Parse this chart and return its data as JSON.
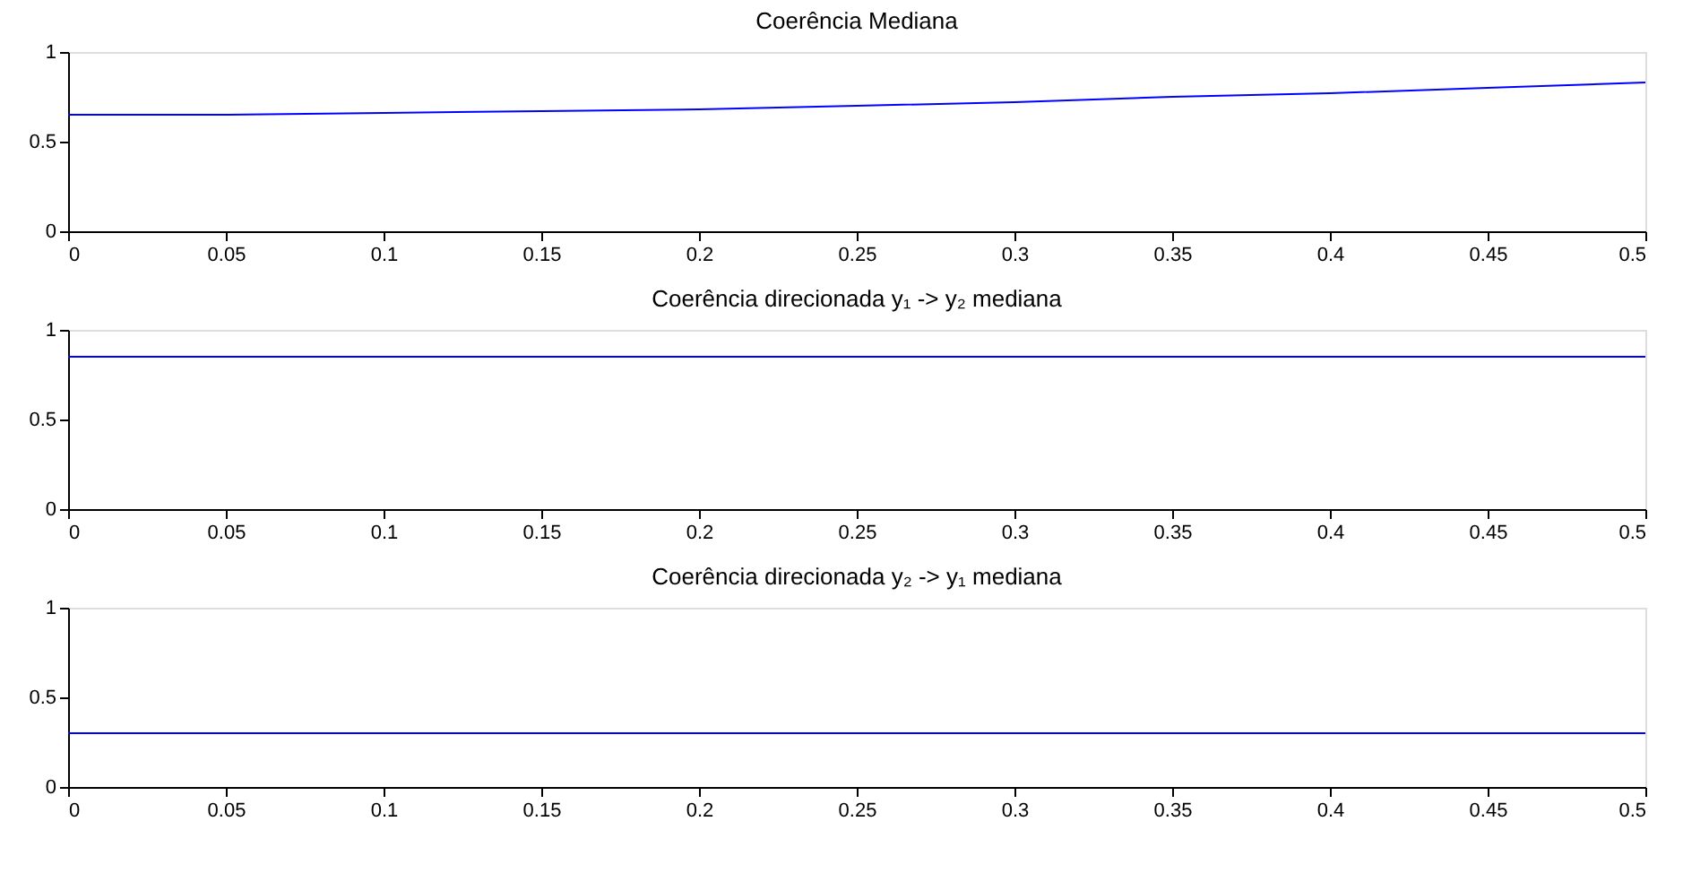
{
  "chart_data": [
    {
      "type": "line",
      "title": "Coerência Mediana",
      "x": [
        0,
        0.05,
        0.1,
        0.15,
        0.2,
        0.25,
        0.3,
        0.35,
        0.4,
        0.45,
        0.5
      ],
      "values": [
        0.65,
        0.65,
        0.66,
        0.67,
        0.68,
        0.7,
        0.72,
        0.75,
        0.77,
        0.8,
        0.83
      ],
      "color": "#0000ff",
      "xlim": [
        0,
        0.5
      ],
      "xticks": [
        0,
        0.05,
        0.1,
        0.15,
        0.2,
        0.25,
        0.3,
        0.35,
        0.4,
        0.45,
        0.5
      ],
      "ylim": [
        0,
        1
      ],
      "yticks": [
        0,
        0.5,
        1
      ]
    },
    {
      "type": "line",
      "title": "Coerência direcionada y₁ -> y₂ mediana",
      "x": [
        0,
        0.5
      ],
      "values": [
        0.85,
        0.85
      ],
      "color": "#0000ff",
      "xlim": [
        0,
        0.5
      ],
      "xticks": [
        0,
        0.05,
        0.1,
        0.15,
        0.2,
        0.25,
        0.3,
        0.35,
        0.4,
        0.45,
        0.5
      ],
      "ylim": [
        0,
        1
      ],
      "yticks": [
        0,
        0.5,
        1
      ]
    },
    {
      "type": "line",
      "title": "Coerência direcionada y₂ -> y₁ mediana",
      "x": [
        0,
        0.5
      ],
      "values": [
        0.3,
        0.3
      ],
      "color": "#0000ff",
      "xlim": [
        0,
        0.5
      ],
      "xticks": [
        0,
        0.05,
        0.1,
        0.15,
        0.2,
        0.25,
        0.3,
        0.35,
        0.4,
        0.45,
        0.5
      ],
      "ylim": [
        0,
        1
      ],
      "yticks": [
        0,
        0.5,
        1
      ]
    }
  ]
}
